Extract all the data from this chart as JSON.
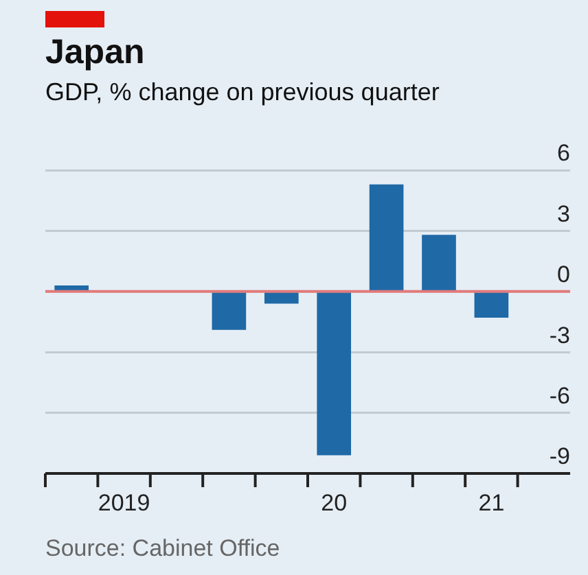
{
  "chart_data": {
    "type": "bar",
    "title": "Japan",
    "subtitle": "GDP, % change on previous quarter",
    "categories": [
      null,
      "2019",
      null,
      null,
      null,
      "20",
      null,
      null,
      "21",
      null
    ],
    "values": [
      0.3,
      0.0,
      0.0,
      -1.9,
      -0.6,
      -8.1,
      5.3,
      2.8,
      -1.3,
      null
    ],
    "color": "#1f69a6",
    "ylim": [
      -9,
      6
    ],
    "yticks": [
      -9,
      -6,
      -3,
      0,
      3,
      6
    ],
    "grid": "y",
    "ref_lines": [
      {
        "axis": "y",
        "value": 0,
        "color": "#e07a7a"
      }
    ],
    "annotations": [
      "Source: Cabinet Office"
    ]
  }
}
